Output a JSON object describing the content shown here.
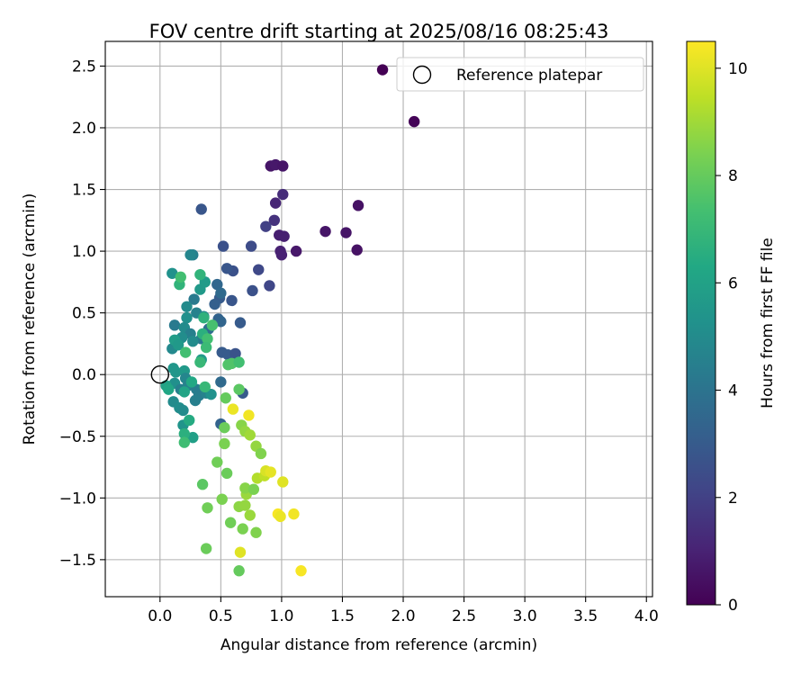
{
  "chart_data": {
    "type": "scatter",
    "title": "FOV centre drift starting at 2025/08/16 08:25:43",
    "xlabel": "Angular distance from reference (arcmin)",
    "ylabel": "Rotation from reference (arcmin)",
    "xlim": [
      -0.45,
      4.05
    ],
    "ylim": [
      -1.8,
      2.7
    ],
    "x_ticks": [
      0.0,
      0.5,
      1.0,
      1.5,
      2.0,
      2.5,
      3.0,
      3.5,
      4.0
    ],
    "x_tick_labels": [
      "0.0",
      "0.5",
      "1.0",
      "1.5",
      "2.0",
      "2.5",
      "3.0",
      "3.5",
      "4.0"
    ],
    "y_ticks": [
      -1.5,
      -1.0,
      -0.5,
      0.0,
      0.5,
      1.0,
      1.5,
      2.0,
      2.5
    ],
    "y_tick_labels": [
      "−1.5",
      "−1.0",
      "−0.5",
      "0.0",
      "0.5",
      "1.0",
      "1.5",
      "2.0",
      "2.5"
    ],
    "grid": true,
    "legend": {
      "position": "top-right",
      "entries": [
        "Reference platepar"
      ]
    },
    "reference_point": {
      "name": "Reference platepar",
      "x": 0.0,
      "y": 0.0
    },
    "colorbar": {
      "label": "Hours from first FF file",
      "colormap": "viridis",
      "range": [
        0,
        10.5
      ],
      "ticks": [
        0,
        2,
        4,
        6,
        8,
        10
      ],
      "tick_labels": [
        "0",
        "2",
        "4",
        "6",
        "8",
        "10"
      ]
    },
    "points": [
      {
        "x": 1.83,
        "y": 2.47,
        "hours": 0.0
      },
      {
        "x": 2.09,
        "y": 2.05,
        "hours": 0.1
      },
      {
        "x": 0.91,
        "y": 1.69,
        "hours": 0.6
      },
      {
        "x": 0.95,
        "y": 1.7,
        "hours": 0.7
      },
      {
        "x": 1.01,
        "y": 1.69,
        "hours": 0.6
      },
      {
        "x": 1.63,
        "y": 1.37,
        "hours": 0.5
      },
      {
        "x": 1.36,
        "y": 1.16,
        "hours": 0.6
      },
      {
        "x": 1.53,
        "y": 1.15,
        "hours": 0.6
      },
      {
        "x": 1.62,
        "y": 1.01,
        "hours": 0.5
      },
      {
        "x": 1.12,
        "y": 1.0,
        "hours": 0.7
      },
      {
        "x": 0.98,
        "y": 1.13,
        "hours": 0.9
      },
      {
        "x": 1.02,
        "y": 1.12,
        "hours": 0.9
      },
      {
        "x": 0.99,
        "y": 1.0,
        "hours": 1.0
      },
      {
        "x": 1.0,
        "y": 0.97,
        "hours": 1.0
      },
      {
        "x": 0.95,
        "y": 1.39,
        "hours": 1.1
      },
      {
        "x": 1.01,
        "y": 1.46,
        "hours": 1.3
      },
      {
        "x": 0.94,
        "y": 1.25,
        "hours": 1.5
      },
      {
        "x": 0.87,
        "y": 1.2,
        "hours": 2.0
      },
      {
        "x": 0.75,
        "y": 1.04,
        "hours": 2.4
      },
      {
        "x": 0.52,
        "y": 1.04,
        "hours": 2.6
      },
      {
        "x": 0.34,
        "y": 1.34,
        "hours": 2.8
      },
      {
        "x": 0.81,
        "y": 0.85,
        "hours": 2.3
      },
      {
        "x": 0.9,
        "y": 0.72,
        "hours": 2.2
      },
      {
        "x": 0.76,
        "y": 0.68,
        "hours": 2.6
      },
      {
        "x": 0.6,
        "y": 0.84,
        "hours": 2.6
      },
      {
        "x": 0.55,
        "y": 0.86,
        "hours": 2.8
      },
      {
        "x": 0.59,
        "y": 0.6,
        "hours": 2.8
      },
      {
        "x": 0.66,
        "y": 0.42,
        "hours": 3.0
      },
      {
        "x": 0.49,
        "y": 0.62,
        "hours": 3.0
      },
      {
        "x": 0.45,
        "y": 0.57,
        "hours": 3.2
      },
      {
        "x": 0.47,
        "y": 0.73,
        "hours": 3.5
      },
      {
        "x": 0.5,
        "y": 0.66,
        "hours": 3.6
      },
      {
        "x": 0.48,
        "y": 0.45,
        "hours": 3.3
      },
      {
        "x": 0.5,
        "y": 0.43,
        "hours": 3.4
      },
      {
        "x": 0.4,
        "y": 0.37,
        "hours": 3.8
      },
      {
        "x": 0.34,
        "y": 0.29,
        "hours": 4.2
      },
      {
        "x": 0.51,
        "y": 0.18,
        "hours": 3.0
      },
      {
        "x": 0.56,
        "y": 0.16,
        "hours": 3.0
      },
      {
        "x": 0.62,
        "y": 0.17,
        "hours": 2.7
      },
      {
        "x": 0.68,
        "y": -0.15,
        "hours": 3.0
      },
      {
        "x": 0.5,
        "y": -0.06,
        "hours": 3.6
      },
      {
        "x": 0.5,
        "y": -0.4,
        "hours": 3.3
      },
      {
        "x": 0.27,
        "y": 0.97,
        "hours": 4.5
      },
      {
        "x": 0.25,
        "y": 0.97,
        "hours": 4.8
      },
      {
        "x": 0.28,
        "y": 0.61,
        "hours": 4.3
      },
      {
        "x": 0.22,
        "y": 0.55,
        "hours": 5.0
      },
      {
        "x": 0.3,
        "y": 0.5,
        "hours": 4.6
      },
      {
        "x": 0.36,
        "y": 0.47,
        "hours": 4.9
      },
      {
        "x": 0.22,
        "y": 0.46,
        "hours": 5.2
      },
      {
        "x": 0.12,
        "y": 0.4,
        "hours": 4.3
      },
      {
        "x": 0.2,
        "y": 0.38,
        "hours": 5.0
      },
      {
        "x": 0.25,
        "y": 0.33,
        "hours": 4.5
      },
      {
        "x": 0.18,
        "y": 0.3,
        "hours": 5.1
      },
      {
        "x": 0.27,
        "y": 0.27,
        "hours": 5.0
      },
      {
        "x": 0.1,
        "y": 0.21,
        "hours": 4.9
      },
      {
        "x": 0.1,
        "y": 0.82,
        "hours": 5.3
      },
      {
        "x": 0.12,
        "y": 0.28,
        "hours": 5.8
      },
      {
        "x": 0.15,
        "y": 0.24,
        "hours": 5.6
      },
      {
        "x": 0.33,
        "y": 0.69,
        "hours": 5.6
      },
      {
        "x": 0.37,
        "y": 0.75,
        "hours": 5.7
      },
      {
        "x": 0.34,
        "y": 0.12,
        "hours": 5.7
      },
      {
        "x": 0.11,
        "y": 0.05,
        "hours": 5.5
      },
      {
        "x": 0.13,
        "y": 0.02,
        "hours": 5.5
      },
      {
        "x": 0.2,
        "y": 0.03,
        "hours": 5.6
      },
      {
        "x": 0.12,
        "y": -0.07,
        "hours": 5.2
      },
      {
        "x": 0.21,
        "y": -0.03,
        "hours": 4.8
      },
      {
        "x": 0.17,
        "y": -0.12,
        "hours": 4.5
      },
      {
        "x": 0.23,
        "y": -0.09,
        "hours": 4.6
      },
      {
        "x": 0.3,
        "y": -0.12,
        "hours": 4.4
      },
      {
        "x": 0.32,
        "y": -0.17,
        "hours": 4.4
      },
      {
        "x": 0.29,
        "y": -0.21,
        "hours": 4.5
      },
      {
        "x": 0.38,
        "y": -0.15,
        "hours": 4.6
      },
      {
        "x": 0.42,
        "y": -0.16,
        "hours": 5.3
      },
      {
        "x": 0.11,
        "y": -0.22,
        "hours": 5.0
      },
      {
        "x": 0.16,
        "y": -0.27,
        "hours": 5.1
      },
      {
        "x": 0.19,
        "y": -0.29,
        "hours": 5.0
      },
      {
        "x": 0.19,
        "y": -0.41,
        "hours": 5.4
      },
      {
        "x": 0.05,
        "y": -0.09,
        "hours": 6.0
      },
      {
        "x": 0.07,
        "y": -0.12,
        "hours": 6.2
      },
      {
        "x": 0.2,
        "y": -0.14,
        "hours": 6.1
      },
      {
        "x": 0.26,
        "y": -0.06,
        "hours": 6.3
      },
      {
        "x": 0.27,
        "y": -0.51,
        "hours": 5.9
      },
      {
        "x": 0.24,
        "y": -0.37,
        "hours": 6.4
      },
      {
        "x": 0.2,
        "y": -0.48,
        "hours": 6.6
      },
      {
        "x": 0.2,
        "y": -0.55,
        "hours": 7.2
      },
      {
        "x": 0.37,
        "y": -0.1,
        "hours": 7.0
      },
      {
        "x": 0.16,
        "y": 0.73,
        "hours": 6.8
      },
      {
        "x": 0.17,
        "y": 0.79,
        "hours": 7.3
      },
      {
        "x": 0.33,
        "y": 0.81,
        "hours": 6.8
      },
      {
        "x": 0.36,
        "y": 0.46,
        "hours": 6.7
      },
      {
        "x": 0.35,
        "y": 0.33,
        "hours": 6.6
      },
      {
        "x": 0.39,
        "y": 0.29,
        "hours": 7.3
      },
      {
        "x": 0.38,
        "y": 0.22,
        "hours": 7.1
      },
      {
        "x": 0.21,
        "y": 0.18,
        "hours": 7.3
      },
      {
        "x": 0.43,
        "y": 0.4,
        "hours": 7.4
      },
      {
        "x": 0.33,
        "y": 0.1,
        "hours": 7.0
      },
      {
        "x": 0.56,
        "y": 0.08,
        "hours": 7.6
      },
      {
        "x": 0.59,
        "y": 0.09,
        "hours": 7.6
      },
      {
        "x": 0.65,
        "y": 0.1,
        "hours": 7.3
      },
      {
        "x": 0.65,
        "y": -0.12,
        "hours": 7.8
      },
      {
        "x": 0.54,
        "y": -0.19,
        "hours": 8.0
      },
      {
        "x": 0.53,
        "y": -0.43,
        "hours": 8.1
      },
      {
        "x": 0.53,
        "y": -0.56,
        "hours": 8.4
      },
      {
        "x": 0.47,
        "y": -0.71,
        "hours": 8.2
      },
      {
        "x": 0.35,
        "y": -0.89,
        "hours": 7.8
      },
      {
        "x": 0.55,
        "y": -0.8,
        "hours": 8.1
      },
      {
        "x": 0.39,
        "y": -1.08,
        "hours": 8.2
      },
      {
        "x": 0.51,
        "y": -1.01,
        "hours": 8.4
      },
      {
        "x": 0.58,
        "y": -1.2,
        "hours": 8.2
      },
      {
        "x": 0.38,
        "y": -1.41,
        "hours": 8.1
      },
      {
        "x": 0.65,
        "y": -1.59,
        "hours": 8.0
      },
      {
        "x": 0.67,
        "y": -0.41,
        "hours": 8.6
      },
      {
        "x": 0.7,
        "y": -0.46,
        "hours": 8.8
      },
      {
        "x": 0.74,
        "y": -0.49,
        "hours": 9.0
      },
      {
        "x": 0.79,
        "y": -0.58,
        "hours": 8.8
      },
      {
        "x": 0.83,
        "y": -0.64,
        "hours": 8.5
      },
      {
        "x": 0.68,
        "y": -1.25,
        "hours": 8.4
      },
      {
        "x": 0.65,
        "y": -1.07,
        "hours": 8.7
      },
      {
        "x": 0.7,
        "y": -1.06,
        "hours": 8.8
      },
      {
        "x": 0.71,
        "y": -0.97,
        "hours": 8.9
      },
      {
        "x": 0.7,
        "y": -0.92,
        "hours": 8.6
      },
      {
        "x": 0.77,
        "y": -0.93,
        "hours": 8.4
      },
      {
        "x": 0.74,
        "y": -1.14,
        "hours": 8.9
      },
      {
        "x": 0.79,
        "y": -1.28,
        "hours": 8.5
      },
      {
        "x": 0.6,
        "y": -0.28,
        "hours": 10.2
      },
      {
        "x": 0.73,
        "y": -0.33,
        "hours": 10.3
      },
      {
        "x": 0.8,
        "y": -0.84,
        "hours": 9.3
      },
      {
        "x": 0.86,
        "y": -0.82,
        "hours": 9.5
      },
      {
        "x": 0.87,
        "y": -0.78,
        "hours": 9.9
      },
      {
        "x": 0.91,
        "y": -0.79,
        "hours": 10.1
      },
      {
        "x": 0.66,
        "y": -1.44,
        "hours": 10.0
      },
      {
        "x": 0.97,
        "y": -1.13,
        "hours": 10.4
      },
      {
        "x": 0.99,
        "y": -1.15,
        "hours": 10.2
      },
      {
        "x": 1.01,
        "y": -0.87,
        "hours": 10.0
      },
      {
        "x": 1.1,
        "y": -1.13,
        "hours": 10.3
      },
      {
        "x": 1.16,
        "y": -1.59,
        "hours": 10.4
      }
    ]
  }
}
